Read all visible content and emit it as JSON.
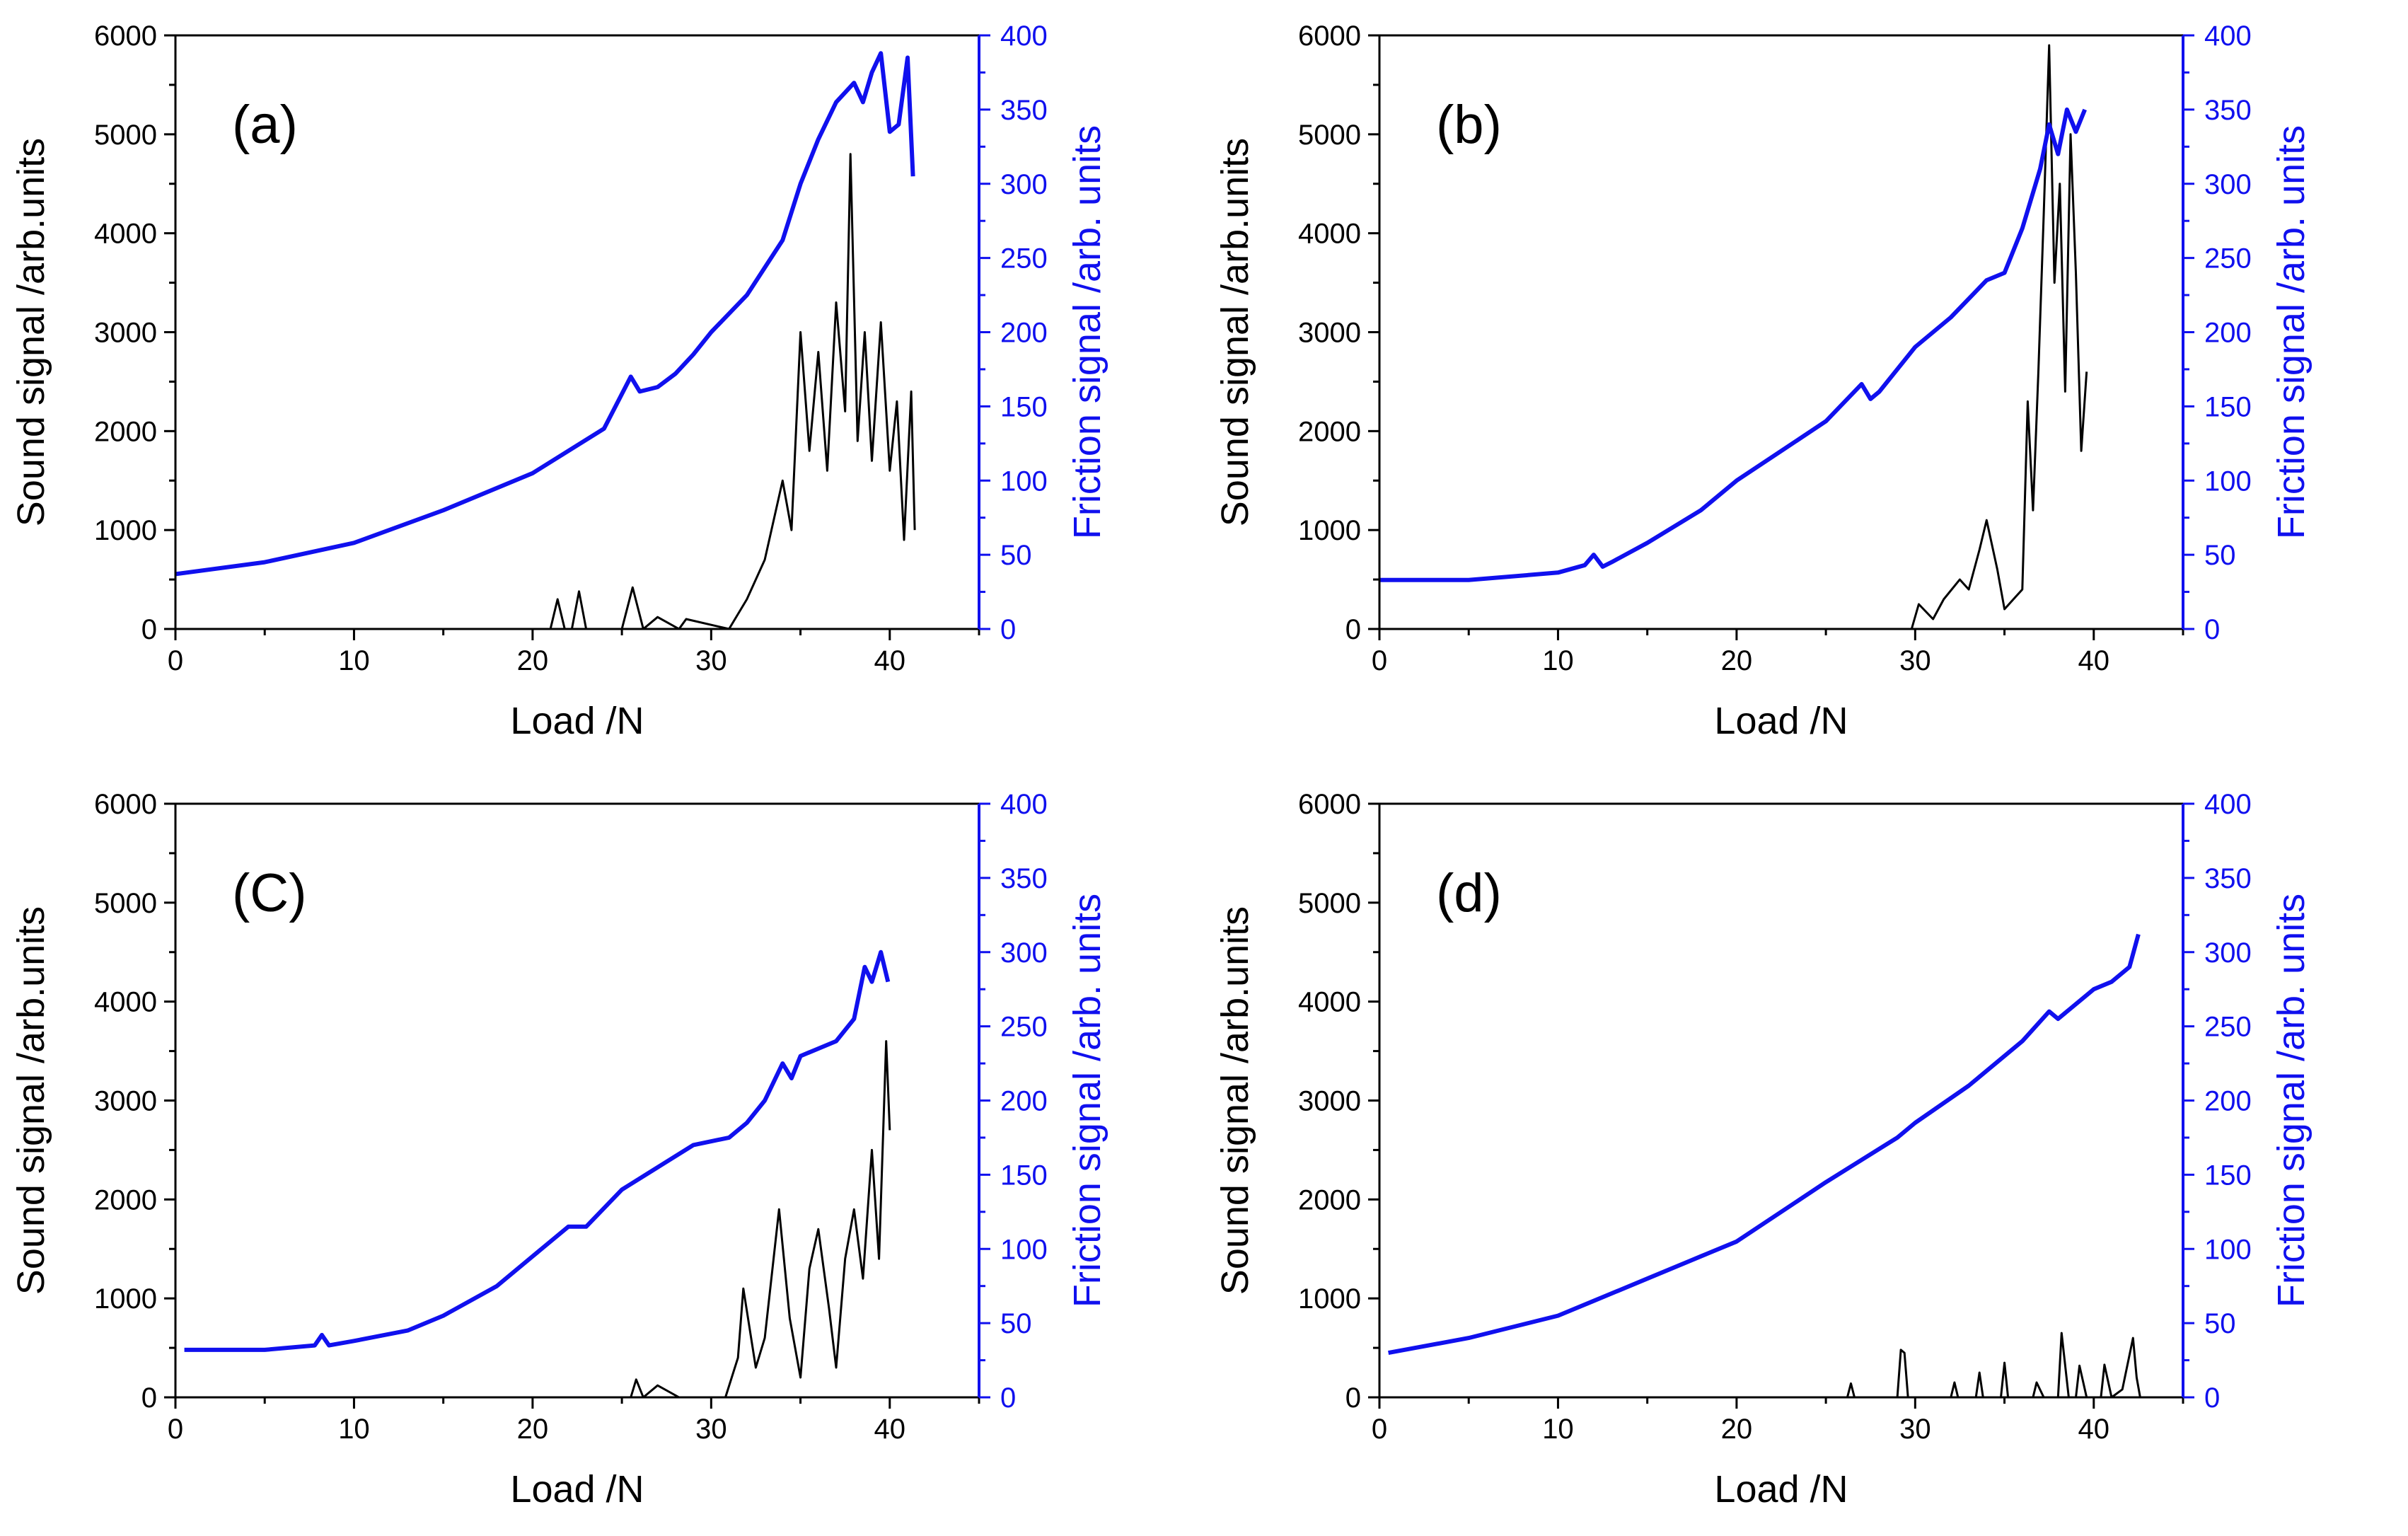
{
  "colors": {
    "sound": "#000000",
    "friction": "#1010ee",
    "axis": "#000000",
    "right_axis": "#1010ee"
  },
  "chart_data": [
    {
      "type": "line",
      "panel_label": "(a)",
      "xlabel": "Load /N",
      "ylabel_left": "Sound signal /arb.units",
      "ylabel_right": "Friction signal /arb. units",
      "xlim": [
        0,
        45
      ],
      "ylim_left": [
        0,
        6000
      ],
      "ylim_right": [
        0,
        400
      ],
      "xticks": [
        0,
        10,
        20,
        30,
        40
      ],
      "yticks_left": [
        0,
        1000,
        2000,
        3000,
        4000,
        5000,
        6000
      ],
      "yticks_right": [
        0,
        50,
        100,
        150,
        200,
        250,
        300,
        350,
        400
      ],
      "friction": {
        "name": "Friction signal",
        "x": [
          0,
          5,
          10,
          15,
          20,
          24,
          25.5,
          26,
          27,
          28,
          29,
          30,
          32,
          34,
          35,
          36,
          37,
          38,
          38.5,
          39,
          39.5,
          40,
          40.5,
          41,
          41.3
        ],
        "y": [
          37,
          45,
          58,
          80,
          105,
          135,
          170,
          160,
          163,
          172,
          185,
          200,
          225,
          262,
          300,
          330,
          355,
          368,
          355,
          375,
          388,
          335,
          340,
          385,
          305
        ]
      },
      "sound": {
        "name": "Sound signal",
        "x": [
          0,
          21,
          21.4,
          21.8,
          22.2,
          22.6,
          23,
          25,
          25.6,
          26.2,
          27,
          28.2,
          28.6,
          31,
          32,
          33,
          34,
          34.5,
          35,
          35.5,
          36,
          36.5,
          37,
          37.5,
          37.8,
          38.2,
          38.6,
          39,
          39.5,
          40,
          40.4,
          40.8,
          41.2,
          41.4
        ],
        "y": [
          0,
          0,
          300,
          0,
          0,
          380,
          0,
          0,
          420,
          0,
          120,
          0,
          100,
          0,
          300,
          700,
          1500,
          1000,
          3000,
          1800,
          2800,
          1600,
          3300,
          2200,
          4800,
          1900,
          3000,
          1700,
          3100,
          1600,
          2300,
          900,
          2400,
          1000
        ]
      }
    },
    {
      "type": "line",
      "panel_label": "(b)",
      "xlabel": "Load /N",
      "ylabel_left": "Sound signal /arb.units",
      "ylabel_right": "Friction signal /arb. units",
      "xlim": [
        0,
        45
      ],
      "ylim_left": [
        0,
        6000
      ],
      "ylim_right": [
        0,
        400
      ],
      "xticks": [
        0,
        10,
        20,
        30,
        40
      ],
      "yticks_left": [
        0,
        1000,
        2000,
        3000,
        4000,
        5000,
        6000
      ],
      "yticks_right": [
        0,
        50,
        100,
        150,
        200,
        250,
        300,
        350,
        400
      ],
      "friction": {
        "name": "Friction signal",
        "x": [
          0,
          5,
          10,
          11.5,
          12,
          12.5,
          13,
          15,
          18,
          20,
          25,
          27,
          27.5,
          28,
          30,
          32,
          34,
          35,
          36,
          37,
          37.5,
          38,
          38.5,
          39,
          39.5
        ],
        "y": [
          33,
          33,
          38,
          43,
          50,
          42,
          45,
          58,
          80,
          100,
          140,
          165,
          155,
          160,
          190,
          210,
          235,
          240,
          270,
          310,
          340,
          320,
          350,
          335,
          350
        ]
      },
      "sound": {
        "name": "Sound signal",
        "x": [
          0,
          29.8,
          30.2,
          31,
          31.6,
          32.5,
          33,
          33.6,
          34,
          34.6,
          35,
          35.5,
          36,
          36.3,
          36.6,
          36.9,
          37.2,
          37.5,
          37.8,
          38.1,
          38.4,
          38.7,
          39,
          39.3,
          39.6
        ],
        "y": [
          0,
          0,
          250,
          100,
          300,
          500,
          400,
          800,
          1100,
          600,
          200,
          300,
          400,
          2300,
          1200,
          2600,
          4200,
          5900,
          3500,
          4500,
          2400,
          5000,
          3600,
          1800,
          2600
        ]
      }
    },
    {
      "type": "line",
      "panel_label": "(C)",
      "xlabel": "Load /N",
      "ylabel_left": "Sound signal /arb.units",
      "ylabel_right": "Friction signal /arb. units",
      "xlim": [
        0,
        45
      ],
      "ylim_left": [
        0,
        6000
      ],
      "ylim_right": [
        0,
        400
      ],
      "xticks": [
        0,
        10,
        20,
        30,
        40
      ],
      "yticks_left": [
        0,
        1000,
        2000,
        3000,
        4000,
        5000,
        6000
      ],
      "yticks_right": [
        0,
        50,
        100,
        150,
        200,
        250,
        300,
        350,
        400
      ],
      "friction": {
        "name": "Friction signal",
        "x": [
          0.5,
          5,
          7.8,
          8.2,
          8.6,
          10,
          13,
          15,
          18,
          20,
          22,
          23,
          25,
          27,
          29,
          31,
          32,
          33,
          34,
          34.5,
          35,
          37,
          38,
          38.6,
          39,
          39.5,
          39.9
        ],
        "y": [
          32,
          32,
          35,
          42,
          35,
          38,
          45,
          55,
          75,
          95,
          115,
          115,
          140,
          155,
          170,
          175,
          185,
          200,
          225,
          215,
          230,
          240,
          255,
          290,
          280,
          300,
          280
        ]
      },
      "sound": {
        "name": "Sound signal",
        "x": [
          0,
          25.5,
          25.8,
          26.2,
          27,
          28.2,
          30.8,
          31.5,
          31.8,
          32.5,
          33,
          33.8,
          34.4,
          35,
          35.5,
          36,
          36.6,
          37,
          37.5,
          38,
          38.5,
          39,
          39.4,
          39.8,
          40
        ],
        "y": [
          0,
          0,
          180,
          0,
          120,
          0,
          0,
          400,
          1100,
          300,
          600,
          1900,
          800,
          200,
          1300,
          1700,
          900,
          300,
          1400,
          1900,
          1200,
          2500,
          1400,
          3600,
          2700
        ]
      }
    },
    {
      "type": "line",
      "panel_label": "(d)",
      "xlabel": "Load /N",
      "ylabel_left": "Sound signal /arb.units",
      "ylabel_right": "Friction signal /arb. units",
      "xlim": [
        0,
        45
      ],
      "ylim_left": [
        0,
        6000
      ],
      "ylim_right": [
        0,
        400
      ],
      "xticks": [
        0,
        10,
        20,
        30,
        40
      ],
      "yticks_left": [
        0,
        1000,
        2000,
        3000,
        4000,
        5000,
        6000
      ],
      "yticks_right": [
        0,
        50,
        100,
        150,
        200,
        250,
        300,
        350,
        400
      ],
      "friction": {
        "name": "Friction signal",
        "x": [
          0.5,
          5,
          10,
          12,
          15,
          18,
          20,
          25,
          29,
          30,
          33,
          36,
          37.5,
          38,
          39,
          40,
          41,
          42,
          42.5
        ],
        "y": [
          30,
          40,
          55,
          65,
          80,
          95,
          105,
          145,
          175,
          185,
          210,
          240,
          260,
          255,
          265,
          275,
          280,
          290,
          312
        ]
      },
      "sound": {
        "name": "Sound signal",
        "x": [
          0,
          26.2,
          26.4,
          26.6,
          29,
          29.2,
          29.4,
          29.6,
          32,
          32.2,
          32.4,
          33.4,
          33.6,
          33.8,
          34.8,
          35,
          35.2,
          36.6,
          36.8,
          37.2,
          38,
          38.2,
          38.6,
          39,
          39.2,
          39.6,
          40.4,
          40.6,
          41,
          41.6,
          42.2,
          42.4,
          42.6
        ],
        "y": [
          0,
          0,
          140,
          0,
          0,
          480,
          450,
          0,
          0,
          150,
          0,
          0,
          250,
          0,
          0,
          350,
          0,
          0,
          150,
          0,
          0,
          650,
          0,
          0,
          320,
          0,
          0,
          330,
          0,
          80,
          600,
          200,
          0
        ]
      }
    }
  ]
}
